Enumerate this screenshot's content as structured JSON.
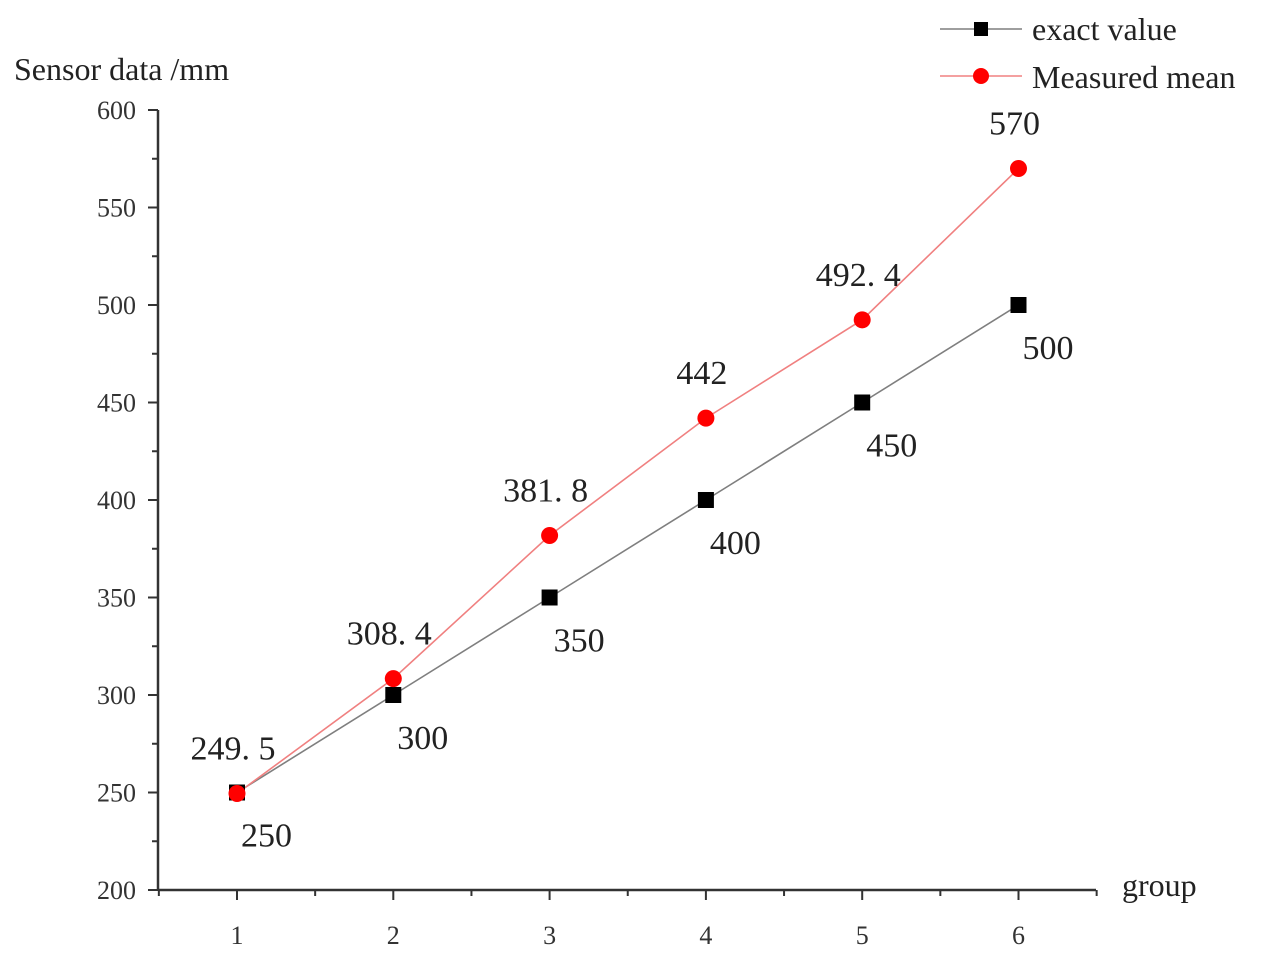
{
  "chart_data": {
    "type": "line",
    "ylabel": "Sensor data /mm",
    "xlabel": "group",
    "x": [
      1,
      2,
      3,
      4,
      5,
      6
    ],
    "xlim": [
      0.5,
      6.5
    ],
    "ylim": [
      200,
      600
    ],
    "yticks": [
      200,
      250,
      300,
      350,
      400,
      450,
      500,
      550,
      600
    ],
    "grid": false,
    "legend_position": "top-right",
    "series": [
      {
        "name": "exact value",
        "marker": "square",
        "color": "#000000",
        "line_color": "#7f7f7f",
        "values": [
          250,
          300,
          350,
          400,
          450,
          500
        ],
        "labels": [
          "250",
          "300",
          "350",
          "400",
          "450",
          "500"
        ]
      },
      {
        "name": "Measured mean",
        "marker": "circle",
        "color": "#ff0000",
        "line_color": "#f08080",
        "values": [
          249.5,
          308.4,
          381.8,
          442,
          492.4,
          570
        ],
        "labels": [
          "249. 5",
          "308. 4",
          "381. 8",
          "442",
          "492. 4",
          "570"
        ]
      }
    ]
  }
}
